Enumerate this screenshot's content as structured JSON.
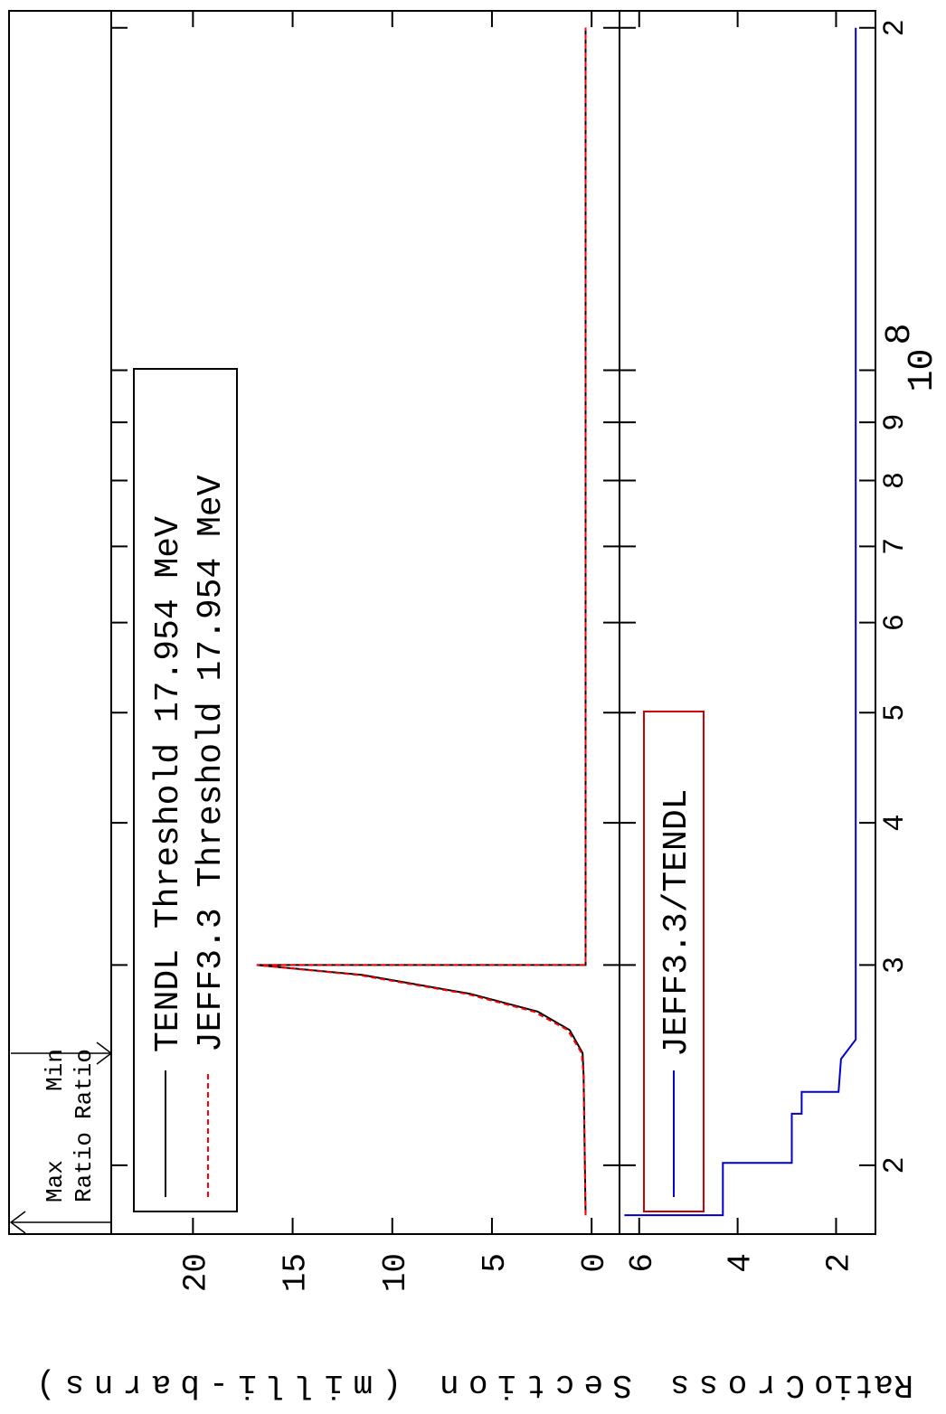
{
  "chart_data": [
    {
      "type": "line",
      "y_label": "Cross Section (milli-barns)",
      "annotations": [
        {
          "lines": [
            "Max",
            "Ratio"
          ]
        },
        {
          "lines": [
            "Min",
            "Ratio"
          ]
        }
      ],
      "xlim": [
        17400000,
        207000000
      ],
      "log_x": true,
      "ylim": [
        -1.4,
        24.1
      ],
      "yticks": [
        0,
        5,
        10,
        15,
        20
      ],
      "series": [
        {
          "name": "TENDL Threshold 17.954 MeV",
          "color": "#000000",
          "dashed": false,
          "x": [
            18080000,
            24000000,
            25100000,
            26300000,
            27300000,
            28300000,
            29400000,
            30000000,
            30000000,
            200000000
          ],
          "values": [
            0.3,
            0.4,
            0.45,
            1.1,
            2.7,
            6.1,
            11.5,
            16.8,
            0.3,
            0.3
          ]
        },
        {
          "name": "JEFF3.3 Threshold 17.954 MeV",
          "color": "#ff0000",
          "dashed": true,
          "x": [
            18080000,
            24000000,
            25100000,
            26300000,
            27300000,
            28300000,
            29400000,
            30000000,
            30000000,
            200000000
          ],
          "values": [
            0.3,
            0.4,
            0.5,
            1.2,
            2.9,
            6.3,
            11.7,
            16.8,
            0.3,
            0.3
          ]
        }
      ]
    },
    {
      "type": "line",
      "y_label": "Ratio",
      "xlim": [
        17400000,
        207000000
      ],
      "log_x": true,
      "xticks": [
        {
          "value": 20000000,
          "label": "2"
        },
        {
          "value": 30000000,
          "label": "3"
        },
        {
          "value": 40000000,
          "label": "4"
        },
        {
          "value": 50000000,
          "label": "5"
        },
        {
          "value": 60000000,
          "label": "6"
        },
        {
          "value": 70000000,
          "label": "7"
        },
        {
          "value": 80000000,
          "label": "8"
        },
        {
          "value": 90000000,
          "label": "9"
        },
        {
          "value": 100000000,
          "label": "10",
          "exponent": "8"
        },
        {
          "value": 200000000,
          "label": "2"
        }
      ],
      "ylim": [
        1.2,
        6.4
      ],
      "yticks": [
        2,
        4,
        6
      ],
      "legend_border_color": "#cc0000",
      "series": [
        {
          "name": "JEFF3.3/TENDL",
          "color": "#0000cc",
          "dashed": false,
          "x": [
            18080000,
            18080000,
            20100000,
            20100000,
            22200000,
            22200000,
            23200000,
            23200000,
            24800000,
            25800000,
            30000000,
            200000000
          ],
          "values": [
            6.3,
            4.3,
            4.3,
            2.9,
            2.9,
            2.7,
            2.7,
            1.95,
            1.9,
            1.6,
            1.6,
            1.6
          ]
        }
      ]
    }
  ]
}
